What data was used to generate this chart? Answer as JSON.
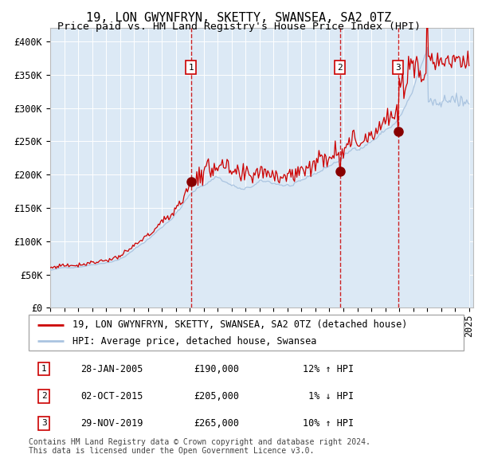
{
  "title": "19, LON GWYNFRYN, SKETTY, SWANSEA, SA2 0TZ",
  "subtitle": "Price paid vs. HM Land Registry's House Price Index (HPI)",
  "ylim": [
    0,
    420000
  ],
  "yticks": [
    0,
    50000,
    100000,
    150000,
    200000,
    250000,
    300000,
    350000,
    400000
  ],
  "ytick_labels": [
    "£0",
    "£50K",
    "£100K",
    "£150K",
    "£200K",
    "£250K",
    "£300K",
    "£350K",
    "£400K"
  ],
  "x_start_year": 1995,
  "x_end_year": 2025,
  "background_color": "#dce9f5",
  "grid_color": "#ffffff",
  "red_line_color": "#cc0000",
  "blue_line_color": "#aac4e0",
  "sale_marker_color": "#880000",
  "dashed_line_color": "#cc0000",
  "legend_label_red": "19, LON GWYNFRYN, SKETTY, SWANSEA, SA2 0TZ (detached house)",
  "legend_label_blue": "HPI: Average price, detached house, Swansea",
  "transactions": [
    {
      "num": 1,
      "date": "28-JAN-2005",
      "price": 190000,
      "pct": "12% ↑ HPI",
      "x": 2005.08
    },
    {
      "num": 2,
      "date": "02-OCT-2015",
      "price": 205000,
      "pct": " 1% ↓ HPI",
      "x": 2015.75
    },
    {
      "num": 3,
      "date": "29-NOV-2019",
      "price": 265000,
      "pct": "10% ↑ HPI",
      "x": 2019.92
    }
  ],
  "table_prices": [
    "£190,000",
    "£205,000",
    "£265,000"
  ],
  "footer": "Contains HM Land Registry data © Crown copyright and database right 2024.\nThis data is licensed under the Open Government Licence v3.0.",
  "title_fontsize": 11,
  "subtitle_fontsize": 9.5,
  "tick_fontsize": 8.5,
  "legend_fontsize": 8.5,
  "table_fontsize": 8.5,
  "footer_fontsize": 7
}
